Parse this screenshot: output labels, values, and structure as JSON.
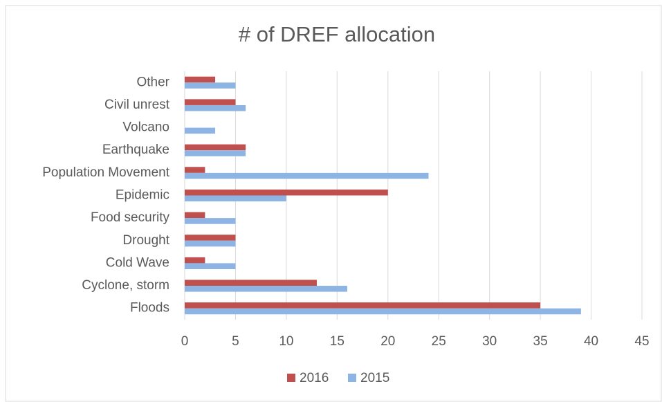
{
  "chart_data": {
    "type": "bar",
    "orientation": "horizontal",
    "title": "# of DREF allocation",
    "categories": [
      "Other",
      "Civil unrest",
      "Volcano",
      "Earthquake",
      "Population Movement",
      "Epidemic",
      "Food security",
      "Drought",
      "Cold Wave",
      "Cyclone, storm",
      "Floods"
    ],
    "series": [
      {
        "name": "2016",
        "color": "#c0504d",
        "values": [
          3,
          5,
          0,
          6,
          2,
          20,
          2,
          5,
          2,
          13,
          35
        ]
      },
      {
        "name": "2015",
        "color": "#8eb4e3",
        "values": [
          5,
          6,
          3,
          6,
          24,
          10,
          5,
          5,
          5,
          16,
          39
        ]
      }
    ],
    "xlim": [
      0,
      45
    ],
    "xticks": [
      0,
      5,
      10,
      15,
      20,
      25,
      30,
      35,
      40,
      45
    ],
    "grid": true,
    "legend": "bottom"
  }
}
